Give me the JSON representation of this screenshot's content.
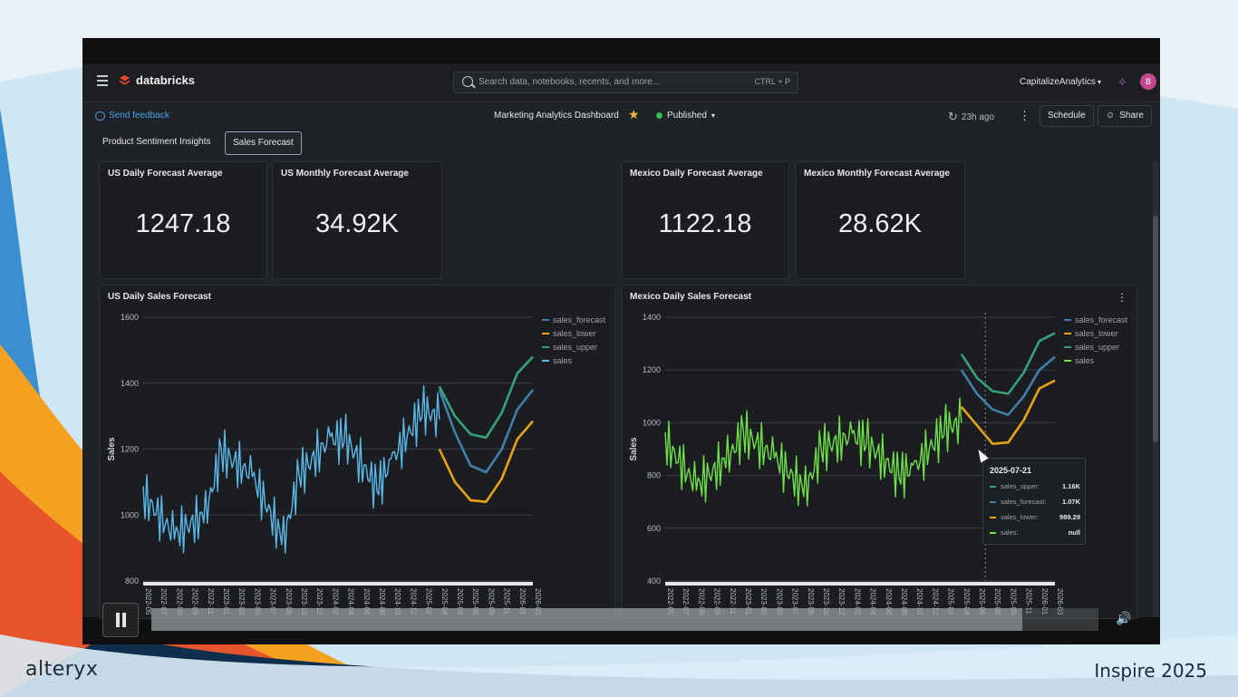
{
  "slide": {
    "brand": "alteryx",
    "event": "Inspire 2025"
  },
  "topbar": {
    "logo": "databricks",
    "search_placeholder": "Search data, notebooks, recents, and more...",
    "search_shortcut": "CTRL + P",
    "workspace": "CapitalizeAnalytics",
    "avatar": "B"
  },
  "subbar": {
    "feedback": "Send feedback",
    "dashboard_title": "Marketing Analytics Dashboard",
    "status": "Published",
    "refreshed": "23h ago",
    "schedule": "Schedule",
    "share": "Share"
  },
  "tabs": [
    {
      "label": "Product Sentiment Insights",
      "active": false
    },
    {
      "label": "Sales Forecast",
      "active": true
    }
  ],
  "kpis": [
    {
      "title": "US Daily Forecast Average",
      "value": "1247.18"
    },
    {
      "title": "US Monthly Forecast Average",
      "value": "34.92K"
    },
    {
      "title": "Mexico Daily Forecast Average",
      "value": "1122.18"
    },
    {
      "title": "Mexico Monthly Forecast Average",
      "value": "28.62K"
    }
  ],
  "colors": {
    "sales_forecast": "#3f7fa8",
    "sales_lower": "#e8a317",
    "sales_upper": "#35a27a",
    "us_sales": "#5ab8e8",
    "mx_sales": "#6fe048"
  },
  "chart_data": [
    {
      "type": "line",
      "title": "US Daily Sales Forecast",
      "ylabel": "Sales",
      "ylim": [
        800,
        1600
      ],
      "yticks": [
        800,
        1000,
        1200,
        1400,
        1600
      ],
      "xticks": [
        "2022-05",
        "2022-07",
        "2022-08",
        "2022-09",
        "2022-11",
        "2023-01",
        "2023-03",
        "2023-05",
        "2023-07",
        "2023-08",
        "2023-10",
        "2023-12",
        "2024-02",
        "2024-04",
        "2024-06",
        "2024-08",
        "2024-10",
        "2024-12",
        "2025-02",
        "2025-04",
        "2025-06",
        "2025-08",
        "2025-09",
        "2025-11",
        "2026-01",
        "2026-03"
      ],
      "series": [
        {
          "name": "sales_forecast",
          "color": "#3f7fa8",
          "x": [
            "2025-04",
            "2025-06",
            "2025-08",
            "2025-09",
            "2025-11",
            "2026-01",
            "2026-03"
          ],
          "values": [
            1380,
            1250,
            1150,
            1130,
            1200,
            1320,
            1380
          ]
        },
        {
          "name": "sales_lower",
          "color": "#e8a317",
          "x": [
            "2025-04",
            "2025-06",
            "2025-08",
            "2025-09",
            "2025-11",
            "2026-01",
            "2026-03"
          ],
          "values": [
            1200,
            1100,
            1045,
            1040,
            1110,
            1230,
            1285
          ]
        },
        {
          "name": "sales_upper",
          "color": "#35a27a",
          "x": [
            "2025-04",
            "2025-06",
            "2025-08",
            "2025-09",
            "2025-11",
            "2026-01",
            "2026-03"
          ],
          "values": [
            1390,
            1300,
            1245,
            1235,
            1310,
            1430,
            1480
          ]
        },
        {
          "name": "sales",
          "color": "#5ab8e8",
          "x": [
            "2022-05",
            "2022-08",
            "2022-11",
            "2023-01",
            "2023-05",
            "2023-08",
            "2023-10",
            "2024-02",
            "2024-04",
            "2024-08",
            "2024-10",
            "2025-02",
            "2025-04"
          ],
          "values": [
            1060,
            940,
            1000,
            1190,
            1120,
            920,
            1120,
            1230,
            1230,
            1080,
            1170,
            1320,
            1290
          ]
        }
      ]
    },
    {
      "type": "line",
      "title": "Mexico Daily Sales Forecast",
      "ylabel": "Sales",
      "ylim": [
        400,
        1400
      ],
      "yticks": [
        400,
        600,
        800,
        1000,
        1200,
        1400
      ],
      "xticks": [
        "2022-05",
        "2022-07",
        "2022-08",
        "2022-09",
        "2022-11",
        "2023-01",
        "2023-03",
        "2023-05",
        "2023-07",
        "2023-08",
        "2023-10",
        "2023-12",
        "2024-02",
        "2024-04",
        "2024-06",
        "2024-08",
        "2024-10",
        "2024-12",
        "2025-02",
        "2025-04",
        "2025-06",
        "2025-08",
        "2025-09",
        "2025-11",
        "2026-01",
        "2026-03"
      ],
      "series": [
        {
          "name": "sales_forecast",
          "color": "#3f7fa8",
          "x": [
            "2025-04",
            "2025-06",
            "2025-08",
            "2025-09",
            "2025-11",
            "2026-01",
            "2026-03"
          ],
          "values": [
            1200,
            1110,
            1050,
            1030,
            1100,
            1200,
            1250
          ]
        },
        {
          "name": "sales_lower",
          "color": "#e8a317",
          "x": [
            "2025-04",
            "2025-06",
            "2025-08",
            "2025-09",
            "2025-11",
            "2026-01",
            "2026-03"
          ],
          "values": [
            1060,
            990,
            920,
            925,
            1010,
            1130,
            1160
          ]
        },
        {
          "name": "sales_upper",
          "color": "#35a27a",
          "x": [
            "2025-04",
            "2025-06",
            "2025-08",
            "2025-09",
            "2025-11",
            "2026-01",
            "2026-03"
          ],
          "values": [
            1260,
            1170,
            1120,
            1110,
            1190,
            1310,
            1340
          ]
        },
        {
          "name": "sales",
          "color": "#6fe048",
          "x": [
            "2022-05",
            "2022-08",
            "2022-11",
            "2023-01",
            "2023-05",
            "2023-08",
            "2023-10",
            "2024-02",
            "2024-04",
            "2024-08",
            "2024-10",
            "2025-02",
            "2025-04"
          ],
          "values": [
            930,
            760,
            860,
            960,
            870,
            740,
            900,
            950,
            920,
            800,
            830,
            980,
            1000
          ]
        }
      ]
    }
  ],
  "tooltip": {
    "date": "2025-07-21",
    "rows": [
      {
        "label": "sales_upper:",
        "value": "1.16K",
        "color": "#35a27a"
      },
      {
        "label": "sales_forecast:",
        "value": "1.07K",
        "color": "#3f7fa8"
      },
      {
        "label": "sales_lower:",
        "value": "989.29",
        "color": "#e8a317"
      },
      {
        "label": "sales:",
        "value": "null",
        "color": "#6fe048"
      }
    ]
  },
  "player": {
    "progress": 0.92
  }
}
